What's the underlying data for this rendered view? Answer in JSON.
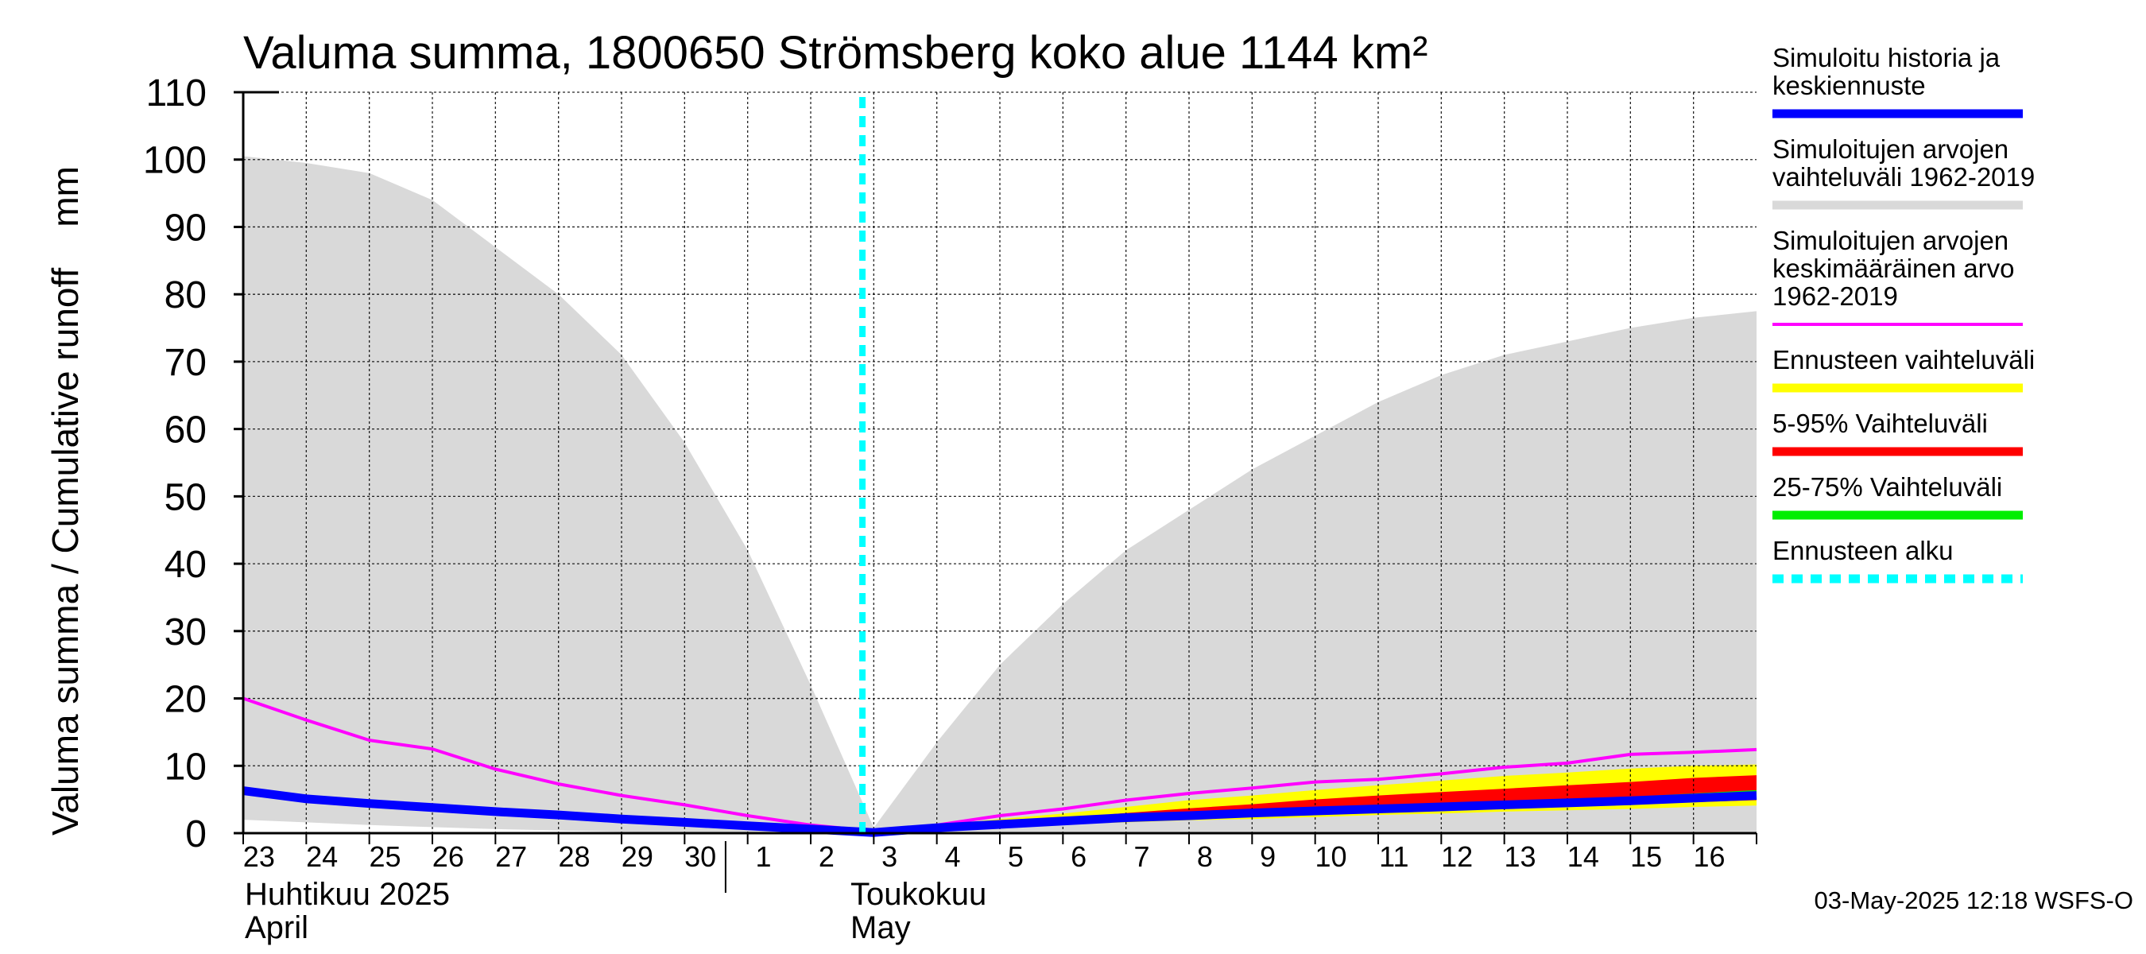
{
  "chart_data": {
    "type": "area",
    "title": "Valuma summa, 1800650 Strömsberg koko alue 1144 km²",
    "ylabel": "Valuma summa / Cumulative runoff    mm",
    "ylim": [
      0,
      110
    ],
    "yticks": [
      "0",
      "10",
      "20",
      "30",
      "40",
      "50",
      "60",
      "70",
      "80",
      "90",
      "100",
      "110"
    ],
    "x_day_labels": [
      "23",
      "24",
      "25",
      "26",
      "27",
      "28",
      "29",
      "30",
      "1",
      "2",
      "3",
      "4",
      "5",
      "6",
      "7",
      "8",
      "9",
      "10",
      "11",
      "12",
      "13",
      "14",
      "15",
      "16"
    ],
    "x_start_date": "2025-04-23",
    "x_end_date": "2025-05-16",
    "month_labels": [
      {
        "line1": "Huhtikuu  2025",
        "line2": "April"
      },
      {
        "line1": "Toukokuu",
        "line2": "May"
      }
    ],
    "forecast_start": "2025-05-03",
    "grid": true,
    "legend_position": "right",
    "series": [
      {
        "name": "Simuloitujen arvojen vaihteluväli 1962-2019",
        "kind": "band",
        "color": "#d9d9d9",
        "x": [
          "2025-04-23",
          "2025-04-24",
          "2025-04-25",
          "2025-04-26",
          "2025-04-27",
          "2025-04-28",
          "2025-04-29",
          "2025-04-30",
          "2025-05-01",
          "2025-05-02",
          "2025-05-03",
          "2025-05-04",
          "2025-05-05",
          "2025-05-06",
          "2025-05-07",
          "2025-05-08",
          "2025-05-09",
          "2025-05-10",
          "2025-05-11",
          "2025-05-12",
          "2025-05-13",
          "2025-05-14",
          "2025-05-15",
          "2025-05-16",
          "2025-05-17"
        ],
        "upper": [
          100.5,
          99.5,
          98,
          94,
          87,
          80,
          71,
          58,
          42,
          22,
          0.8,
          13.5,
          25,
          34,
          42,
          48,
          54,
          59,
          64,
          68,
          71,
          73,
          75,
          76.5,
          77.5
        ],
        "lower": [
          2,
          1.6,
          1.2,
          0.9,
          0.6,
          0.4,
          0.2,
          0.1,
          0,
          0,
          0,
          0,
          0,
          0,
          0,
          0,
          0,
          0,
          0,
          0,
          0,
          0,
          0,
          0,
          0
        ]
      },
      {
        "name": "Ennusteen vaihteluväli",
        "kind": "band",
        "color": "#ffff00",
        "x": [
          "2025-05-03",
          "2025-05-04",
          "2025-05-05",
          "2025-05-06",
          "2025-05-07",
          "2025-05-08",
          "2025-05-09",
          "2025-05-10",
          "2025-05-11",
          "2025-05-12",
          "2025-05-13",
          "2025-05-14",
          "2025-05-15",
          "2025-05-16",
          "2025-05-17"
        ],
        "upper": [
          0,
          1.2,
          2.1,
          2.9,
          3.9,
          4.9,
          5.6,
          6.4,
          7.1,
          7.8,
          8.5,
          9,
          9.6,
          10,
          10.2
        ],
        "lower": [
          0,
          0.6,
          1.0,
          1.3,
          1.6,
          1.9,
          2.1,
          2.4,
          2.7,
          2.9,
          3.2,
          3.4,
          3.6,
          3.9,
          4.1
        ]
      },
      {
        "name": "5-95% Vaihteluväli",
        "kind": "band",
        "color": "#ff0000",
        "x": [
          "2025-05-03",
          "2025-05-04",
          "2025-05-05",
          "2025-05-06",
          "2025-05-07",
          "2025-05-08",
          "2025-05-09",
          "2025-05-10",
          "2025-05-11",
          "2025-05-12",
          "2025-05-13",
          "2025-05-14",
          "2025-05-15",
          "2025-05-16",
          "2025-05-17"
        ],
        "upper": [
          0,
          0.9,
          1.6,
          2.2,
          3.0,
          3.7,
          4.3,
          5.0,
          5.6,
          6.1,
          6.6,
          7.1,
          7.6,
          8.2,
          8.6
        ],
        "lower": [
          0,
          0.7,
          1.2,
          1.5,
          1.9,
          2.2,
          2.5,
          2.8,
          3.1,
          3.4,
          3.7,
          4.0,
          4.3,
          4.6,
          4.9
        ]
      },
      {
        "name": "25-75% Vaihteluväli",
        "kind": "band",
        "color": "#00ee00",
        "x": [
          "2025-05-03",
          "2025-05-04",
          "2025-05-05",
          "2025-05-06",
          "2025-05-07",
          "2025-05-08",
          "2025-05-09",
          "2025-05-10",
          "2025-05-11",
          "2025-05-12",
          "2025-05-13",
          "2025-05-14",
          "2025-05-15",
          "2025-05-16",
          "2025-05-17"
        ],
        "upper": [
          0,
          0.8,
          1.4,
          1.9,
          2.4,
          2.8,
          3.2,
          3.6,
          3.9,
          4.2,
          4.6,
          5.0,
          5.4,
          5.9,
          6.4
        ],
        "lower": [
          0,
          0.7,
          1.2,
          1.6,
          2.0,
          2.3,
          2.6,
          2.9,
          3.2,
          3.5,
          3.8,
          4.1,
          4.4,
          4.7,
          5.0
        ]
      },
      {
        "name": "Simuloitujen arvojen keskimääräinen arvo 1962-2019",
        "kind": "line",
        "color": "#ff00ff",
        "x": [
          "2025-04-23",
          "2025-04-24",
          "2025-04-25",
          "2025-04-26",
          "2025-04-27",
          "2025-04-28",
          "2025-04-29",
          "2025-04-30",
          "2025-05-01",
          "2025-05-02",
          "2025-05-03",
          "2025-05-04",
          "2025-05-05",
          "2025-05-06",
          "2025-05-07",
          "2025-05-08",
          "2025-05-09",
          "2025-05-10",
          "2025-05-11",
          "2025-05-12",
          "2025-05-13",
          "2025-05-14",
          "2025-05-15",
          "2025-05-16",
          "2025-05-17"
        ],
        "y": [
          20,
          16.8,
          13.8,
          12.5,
          9.5,
          7.3,
          5.6,
          4.2,
          2.6,
          1.2,
          0.3,
          1.2,
          2.6,
          3.6,
          4.9,
          5.9,
          6.7,
          7.6,
          8.0,
          8.8,
          9.8,
          10.4,
          11.7,
          12.0,
          12.4
        ]
      },
      {
        "name": "Simuloitu historia ja keskiennuste",
        "kind": "line",
        "color": "#0000ff",
        "x": [
          "2025-04-23",
          "2025-04-24",
          "2025-04-25",
          "2025-04-26",
          "2025-04-27",
          "2025-04-28",
          "2025-04-29",
          "2025-04-30",
          "2025-05-01",
          "2025-05-02",
          "2025-05-03",
          "2025-05-04",
          "2025-05-05",
          "2025-05-06",
          "2025-05-07",
          "2025-05-08",
          "2025-05-09",
          "2025-05-10",
          "2025-05-11",
          "2025-05-12",
          "2025-05-13",
          "2025-05-14",
          "2025-05-15",
          "2025-05-16",
          "2025-05-17"
        ],
        "y": [
          6.3,
          5.1,
          4.4,
          3.8,
          3.2,
          2.7,
          2.1,
          1.6,
          1.1,
          0.6,
          0.1,
          0.8,
          1.3,
          1.8,
          2.3,
          2.6,
          3.0,
          3.3,
          3.6,
          3.9,
          4.2,
          4.5,
          4.8,
          5.2,
          5.6
        ]
      }
    ]
  },
  "legend": [
    {
      "label": "Simuloitu historia ja\nkeskiennuste",
      "color": "#0000ff",
      "style": "solid"
    },
    {
      "label": "Simuloitujen arvojen\nvaihteluväli 1962-2019",
      "color": "#d9d9d9",
      "style": "solid"
    },
    {
      "label": "Simuloitujen arvojen\nkeskimääräinen arvo\n   1962-2019",
      "color": "#ff00ff",
      "style": "thin"
    },
    {
      "label": "Ennusteen vaihteluväli",
      "color": "#ffff00",
      "style": "solid"
    },
    {
      "label": "5-95% Vaihteluväli",
      "color": "#ff0000",
      "style": "solid"
    },
    {
      "label": "25-75% Vaihteluväli",
      "color": "#00ee00",
      "style": "solid"
    },
    {
      "label": "Ennusteen alku",
      "color": "#00ffff",
      "style": "dashed"
    }
  ],
  "footer": "03-May-2025 12:18 WSFS-O"
}
